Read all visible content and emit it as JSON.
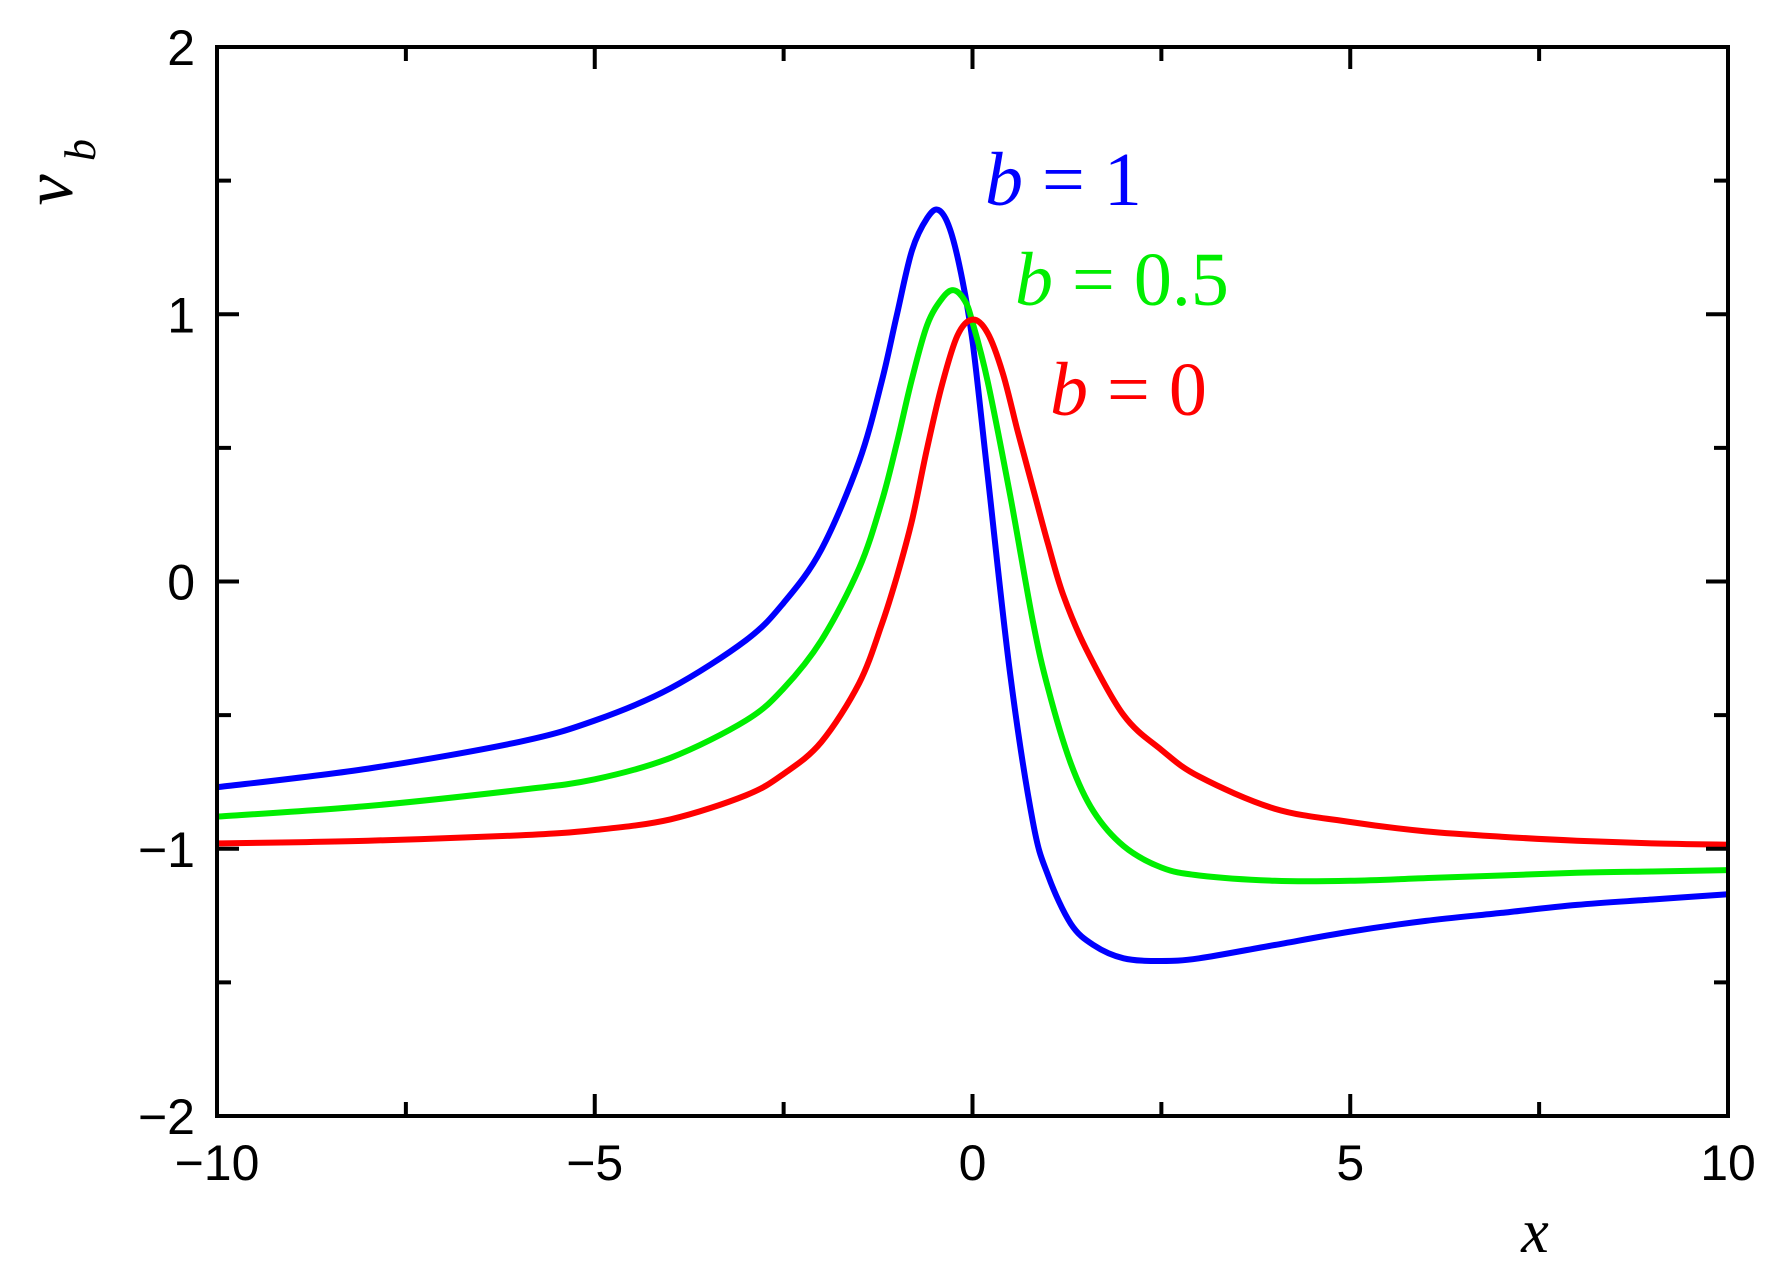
{
  "chart_data": {
    "type": "line",
    "title": "",
    "xlabel": "x",
    "ylabel": {
      "main": "v",
      "subscript": "b"
    },
    "xlim": [
      -10,
      10
    ],
    "ylim": [
      -2,
      2
    ],
    "x_ticks": [
      -10,
      -5,
      0,
      5,
      10
    ],
    "x_tick_labels": [
      "−10",
      "−5",
      "0",
      "5",
      "10"
    ],
    "x_minor_ticks": [
      -7.5,
      -2.5,
      2.5,
      7.5
    ],
    "y_ticks": [
      -2,
      -1,
      0,
      1,
      2
    ],
    "y_tick_labels": [
      "−2",
      "−1",
      "0",
      "1",
      "2"
    ],
    "y_minor_ticks": [
      -1.5,
      -0.5,
      0.5,
      1.5
    ],
    "grid": false,
    "legend": "none",
    "series": [
      {
        "name": "b = 1",
        "label_var": "b",
        "label_rest": " = 1",
        "color": "#0000ff",
        "x": [
          -10,
          -8,
          -6,
          -5,
          -4,
          -3,
          -2.5,
          -2,
          -1.5,
          -1.2,
          -1.0,
          -0.8,
          -0.6,
          -0.45,
          -0.3,
          -0.15,
          0,
          0.2,
          0.5,
          0.8,
          1.0,
          1.3,
          1.6,
          2.0,
          2.5,
          3.0,
          4.0,
          5.0,
          6.0,
          7.0,
          8.0,
          9.0,
          10
        ],
        "y": [
          -0.77,
          -0.7,
          -0.6,
          -0.52,
          -0.4,
          -0.22,
          -0.08,
          0.12,
          0.45,
          0.75,
          1.0,
          1.24,
          1.36,
          1.39,
          1.32,
          1.15,
          0.9,
          0.4,
          -0.35,
          -0.9,
          -1.1,
          -1.28,
          -1.36,
          -1.41,
          -1.42,
          -1.41,
          -1.36,
          -1.31,
          -1.27,
          -1.24,
          -1.21,
          -1.19,
          -1.17
        ]
      },
      {
        "name": "b = 0.5",
        "label_var": "b",
        "label_rest": " = 0.5",
        "color": "#00ee00",
        "x": [
          -10,
          -8,
          -6,
          -5,
          -4,
          -3,
          -2.5,
          -2,
          -1.5,
          -1.2,
          -1.0,
          -0.8,
          -0.6,
          -0.4,
          -0.25,
          -0.1,
          0,
          0.2,
          0.5,
          0.8,
          1.0,
          1.3,
          1.6,
          2.0,
          2.5,
          3.0,
          4.0,
          5.0,
          6.0,
          7.0,
          8.0,
          9.0,
          10
        ],
        "y": [
          -0.88,
          -0.84,
          -0.78,
          -0.74,
          -0.66,
          -0.52,
          -0.4,
          -0.22,
          0.05,
          0.3,
          0.52,
          0.76,
          0.96,
          1.06,
          1.09,
          1.05,
          0.97,
          0.75,
          0.32,
          -0.15,
          -0.4,
          -0.68,
          -0.86,
          -0.99,
          -1.07,
          -1.1,
          -1.12,
          -1.12,
          -1.11,
          -1.1,
          -1.09,
          -1.085,
          -1.08
        ]
      },
      {
        "name": "b = 0",
        "label_var": "b",
        "label_rest": " = 0",
        "color": "#ff0000",
        "x": [
          -10,
          -8,
          -6,
          -5,
          -4,
          -3,
          -2.5,
          -2,
          -1.5,
          -1.2,
          -1.0,
          -0.8,
          -0.6,
          -0.4,
          -0.2,
          0,
          0.2,
          0.4,
          0.6,
          0.8,
          1.0,
          1.2,
          1.5,
          2.0,
          2.5,
          3.0,
          4.0,
          5.0,
          6.0,
          7.0,
          8.0,
          9.0,
          10
        ],
        "y": [
          -0.98,
          -0.97,
          -0.95,
          -0.93,
          -0.89,
          -0.8,
          -0.72,
          -0.6,
          -0.38,
          -0.16,
          0.02,
          0.23,
          0.5,
          0.74,
          0.92,
          0.98,
          0.93,
          0.78,
          0.56,
          0.35,
          0.14,
          -0.05,
          -0.25,
          -0.5,
          -0.63,
          -0.73,
          -0.85,
          -0.9,
          -0.935,
          -0.955,
          -0.97,
          -0.98,
          -0.985
        ]
      }
    ]
  }
}
